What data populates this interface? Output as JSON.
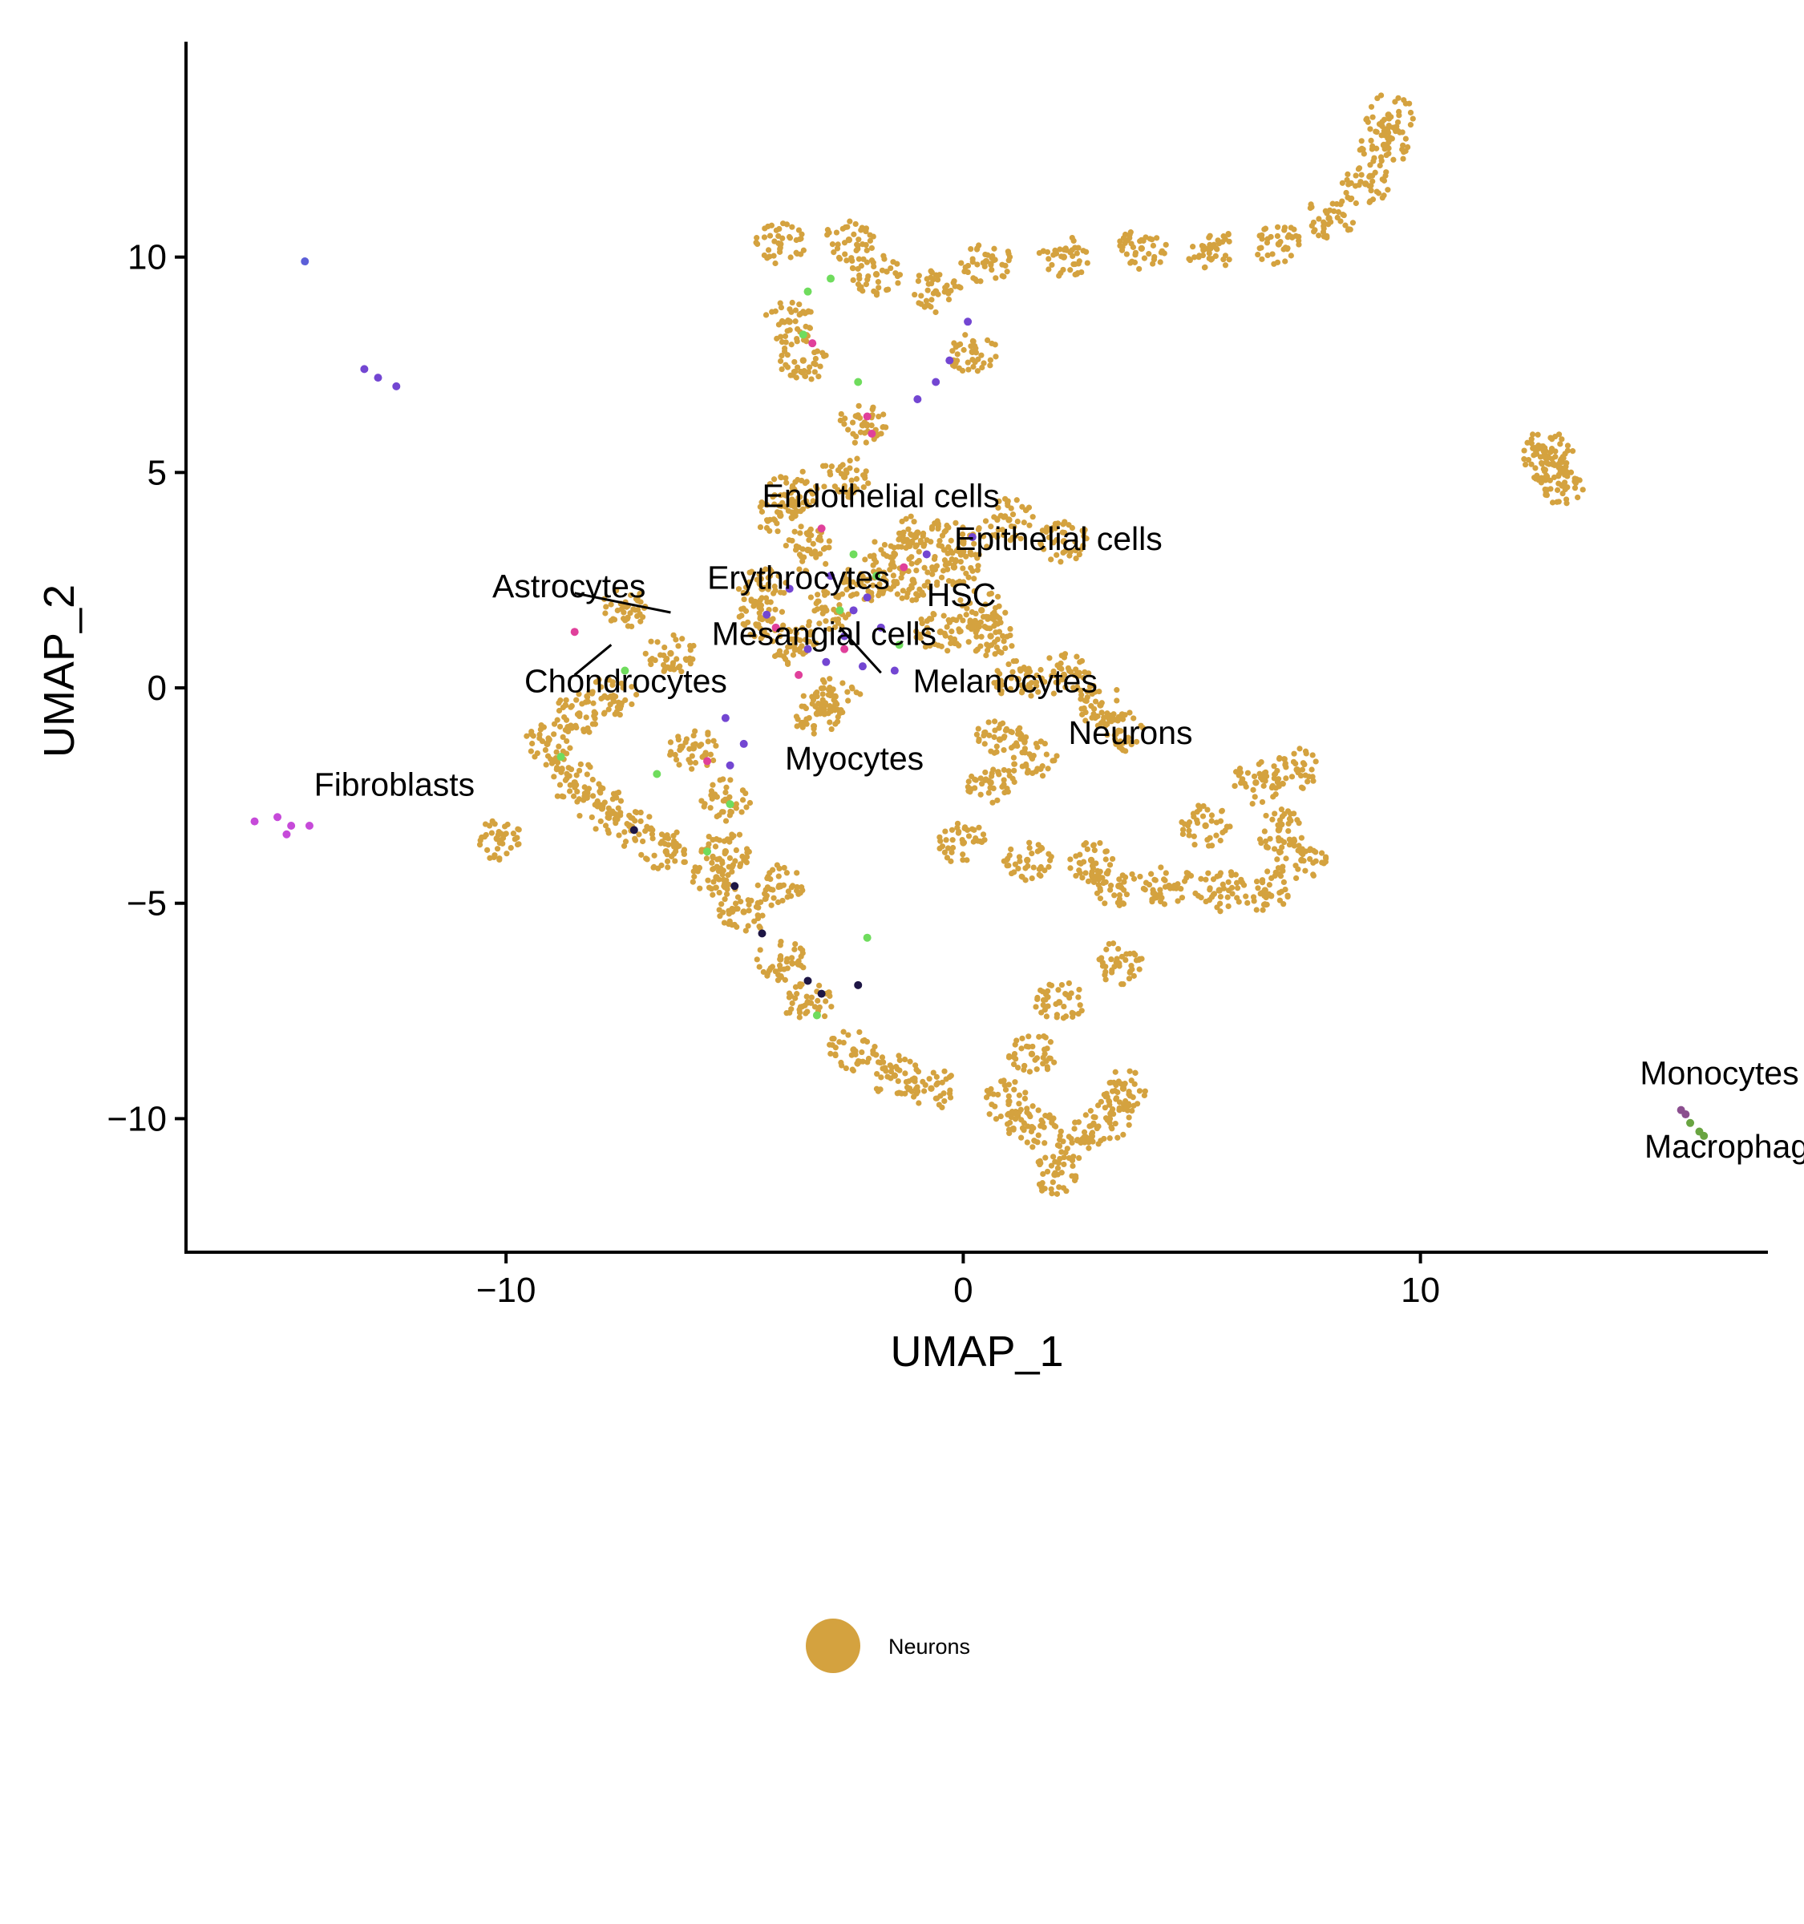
{
  "chart_data": {
    "type": "scatter",
    "title": "",
    "xlabel": "UMAP_1",
    "ylabel": "UMAP_2",
    "xlim": [
      -17,
      17.6
    ],
    "ylim": [
      -13.1,
      15
    ],
    "x_ticks": [
      {
        "value": -10,
        "label": "−10"
      },
      {
        "value": 0,
        "label": "0"
      },
      {
        "value": 10,
        "label": "10"
      }
    ],
    "y_ticks": [
      {
        "value": 10,
        "label": "10"
      },
      {
        "value": 5,
        "label": "5"
      },
      {
        "value": 0,
        "label": "0"
      },
      {
        "value": -5,
        "label": "−5"
      },
      {
        "value": -10,
        "label": "−10"
      }
    ],
    "grid": false,
    "colors": {
      "Neurons": "#d4a23f",
      "Epithelial cells": "#6fdc5d",
      "HSC": "#7346d2",
      "Endothelial cells": "#e0409b",
      "Fibroblasts": "#c64ad9",
      "Monocytes": "#8b4f8f",
      "Macrophages": "#69a441",
      "Myocytes": "#1e1645",
      "Melanocytes": "#5c5fd8"
    },
    "clusters": [
      {
        "name": "Neurons",
        "color": "#d4a23f",
        "points": [
          [
            1.5,
            -10.2
          ],
          [
            2.5,
            -10.5
          ],
          [
            3.2,
            -10
          ],
          [
            2,
            -11.3
          ],
          [
            1,
            -9.6
          ],
          [
            3.5,
            -9.3
          ],
          [
            -0.7,
            -9.3
          ],
          [
            -1.5,
            -9
          ],
          [
            -2.4,
            -8.4
          ],
          [
            -3.4,
            -7.3
          ],
          [
            -4,
            -6.3
          ],
          [
            -4.8,
            -5.2
          ],
          [
            -5.4,
            -4.4
          ],
          [
            -6.5,
            -3.8
          ],
          [
            -7.3,
            -3.2
          ],
          [
            -8.5,
            -2.2
          ],
          [
            -9.1,
            -1.3
          ],
          [
            -8.4,
            -0.6
          ],
          [
            -7.7,
            -0.2
          ],
          [
            -5.9,
            -1.4
          ],
          [
            -5.2,
            -2.6
          ],
          [
            -5.2,
            -3.8
          ],
          [
            -4,
            -4.6
          ],
          [
            -4.4,
            1.6
          ],
          [
            -3.7,
            1
          ],
          [
            -3,
            1.8
          ],
          [
            -2.1,
            2.5
          ],
          [
            -1.5,
            3.1
          ],
          [
            -1,
            3.6
          ],
          [
            0,
            3.4
          ],
          [
            1,
            3.9
          ],
          [
            2.2,
            3.4
          ],
          [
            -3.4,
            3.2
          ],
          [
            -4,
            4
          ],
          [
            -3.7,
            4.6
          ],
          [
            -2.6,
            4.9
          ],
          [
            -0.5,
            1.3
          ],
          [
            0.6,
            1.2
          ],
          [
            1.2,
            0.2
          ],
          [
            2.2,
            0.3
          ],
          [
            3,
            -0.4
          ],
          [
            3.4,
            -1
          ],
          [
            1.5,
            -1.6
          ],
          [
            0.6,
            -2.2
          ],
          [
            0,
            -3.6
          ],
          [
            1.4,
            -4
          ],
          [
            2.8,
            -4
          ],
          [
            3.4,
            -4.6
          ],
          [
            4.5,
            -4.6
          ],
          [
            5.6,
            -4.7
          ],
          [
            6.6,
            -4.7
          ],
          [
            7.4,
            -4
          ],
          [
            6.9,
            -3.3
          ],
          [
            6.4,
            -2.2
          ],
          [
            7.3,
            -1.9
          ],
          [
            5.3,
            -3.2
          ],
          [
            3.4,
            -6.4
          ],
          [
            2.1,
            -7.3
          ],
          [
            1.5,
            -8.5
          ],
          [
            -4.4,
            2.3
          ],
          [
            -4,
            10.3
          ],
          [
            -2.5,
            10.4
          ],
          [
            -3.8,
            8.5
          ],
          [
            -3.5,
            7.6
          ],
          [
            -2.2,
            6.1
          ],
          [
            -1.9,
            9.6
          ],
          [
            -0.6,
            9.2
          ],
          [
            0.2,
            7.8
          ],
          [
            0.5,
            9.9
          ],
          [
            2.2,
            10
          ],
          [
            3.9,
            10.2
          ],
          [
            5.4,
            10.2
          ],
          [
            6.9,
            10.3
          ],
          [
            8,
            10.9
          ],
          [
            8.8,
            11.7
          ],
          [
            9.2,
            12.6
          ],
          [
            9.3,
            13.3
          ],
          [
            12.7,
            5.5
          ],
          [
            12.9,
            5.2
          ],
          [
            13.1,
            4.7
          ],
          [
            -1.1,
            2.5
          ],
          [
            -0.2,
            2.8
          ],
          [
            -3.2,
            -0.6
          ],
          [
            -6.4,
            0.8
          ],
          [
            -7.4,
            1.9
          ],
          [
            -7.9,
            -2.8
          ],
          [
            -10.2,
            -3.5
          ],
          [
            0.4,
            1.8
          ],
          [
            -2.8,
            -0.2
          ],
          [
            0.8,
            -1.2
          ]
        ]
      },
      {
        "name": "Epithelial cells",
        "color": "#6fdc5d",
        "points": [
          [
            -3.4,
            9.2
          ],
          [
            -2.9,
            9.5
          ],
          [
            -3.5,
            8.2
          ],
          [
            -2.3,
            7.1
          ],
          [
            -1.9,
            2.6
          ],
          [
            -2.4,
            3.1
          ],
          [
            -2.7,
            1.8
          ],
          [
            -5.1,
            -2.7
          ],
          [
            -5.6,
            -3.8
          ],
          [
            -7.4,
            0.4
          ],
          [
            -6.7,
            -2
          ],
          [
            -3.2,
            -7.6
          ],
          [
            -1.4,
            1
          ],
          [
            -8.8,
            -1.6
          ],
          [
            -2.1,
            -5.8
          ]
        ]
      },
      {
        "name": "HSC",
        "color": "#7346d2",
        "points": [
          [
            -3.4,
            0.9
          ],
          [
            -3,
            0.6
          ],
          [
            -2.6,
            1.2
          ],
          [
            -2.2,
            0.5
          ],
          [
            -1.8,
            1.4
          ],
          [
            -4.3,
            1.7
          ],
          [
            -3.8,
            2.3
          ],
          [
            -2.1,
            2.1
          ],
          [
            -0.8,
            3.1
          ],
          [
            0.2,
            3.5
          ],
          [
            0.1,
            8.5
          ],
          [
            -0.3,
            7.6
          ],
          [
            -0.6,
            7.1
          ],
          [
            -1,
            6.7
          ],
          [
            -5.2,
            -0.7
          ],
          [
            -4.8,
            -1.3
          ],
          [
            -5.1,
            -1.8
          ],
          [
            -2.4,
            1.8
          ],
          [
            -2.9,
            2.6
          ],
          [
            -1.5,
            0.4
          ],
          [
            -13.1,
            7.4
          ],
          [
            -12.8,
            7.2
          ],
          [
            -12.4,
            7
          ]
        ]
      },
      {
        "name": "Endothelial cells",
        "color": "#e0409b",
        "points": [
          [
            -2.1,
            6.3
          ],
          [
            -2,
            5.9
          ],
          [
            -3.3,
            8
          ],
          [
            -4.1,
            1.4
          ],
          [
            -2.6,
            0.9
          ],
          [
            -1.3,
            2.8
          ],
          [
            -3.6,
            0.3
          ],
          [
            -5.6,
            -1.7
          ],
          [
            -8.5,
            1.3
          ],
          [
            -3.1,
            3.7
          ]
        ]
      },
      {
        "name": "Fibroblasts",
        "color": "#c64ad9",
        "points": [
          [
            -15.5,
            -3.1
          ],
          [
            -15,
            -3
          ],
          [
            -14.7,
            -3.2
          ],
          [
            -14.3,
            -3.2
          ],
          [
            -14.8,
            -3.4
          ]
        ]
      },
      {
        "name": "Monocytes",
        "color": "#8b4f8f",
        "points": [
          [
            15.7,
            -9.8
          ],
          [
            15.8,
            -9.9
          ]
        ]
      },
      {
        "name": "Macrophages",
        "color": "#69a441",
        "points": [
          [
            15.9,
            -10.1
          ],
          [
            16.1,
            -10.3
          ],
          [
            16.2,
            -10.4
          ]
        ]
      },
      {
        "name": "Myocytes",
        "color": "#1e1645",
        "points": [
          [
            -5,
            -4.6
          ],
          [
            -4.4,
            -5.7
          ],
          [
            -3.4,
            -6.8
          ],
          [
            -3.1,
            -7.1
          ],
          [
            -2.3,
            -6.9
          ],
          [
            -7.2,
            -3.3
          ]
        ]
      },
      {
        "name": "Melanocytes",
        "color": "#5c5fd8",
        "points": [
          [
            -14.4,
            9.9
          ]
        ]
      }
    ],
    "cluster_labels": [
      {
        "text": "Endothelial cells",
        "x": -4.4,
        "y": 4.2
      },
      {
        "text": "Epithelial cells",
        "x": -0.2,
        "y": 3.2
      },
      {
        "text": "Astrocytes",
        "x": -10.3,
        "y": 2.1
      },
      {
        "text": "Erythrocytes",
        "x": -5.6,
        "y": 2.3
      },
      {
        "text": "HSC",
        "x": -0.8,
        "y": 1.9
      },
      {
        "text": "Mesangial cells",
        "x": -5.5,
        "y": 1
      },
      {
        "text": "Chondrocytes",
        "x": -9.6,
        "y": -0.1
      },
      {
        "text": "Melanocytes",
        "x": -1.1,
        "y": -0.1
      },
      {
        "text": "Neurons",
        "x": 2.3,
        "y": -1.3
      },
      {
        "text": "Myocytes",
        "x": -3.9,
        "y": -1.9
      },
      {
        "text": "Fibroblasts",
        "x": -14.2,
        "y": -2.5
      },
      {
        "text": "Monocytes",
        "x": 14.8,
        "y": -9.2
      },
      {
        "text": "Macrophages",
        "x": 14.9,
        "y": -10.9
      }
    ],
    "label_leaders": [
      {
        "from": [
          -8.5,
          2.2
        ],
        "to": [
          -6.4,
          1.75
        ]
      },
      {
        "from": [
          -8.5,
          0.3
        ],
        "to": [
          -7.7,
          1.0
        ]
      },
      {
        "from": [
          -2.7,
          1.4
        ],
        "to": [
          -1.8,
          0.35
        ]
      }
    ],
    "legend": {
      "position": "bottom",
      "entries": [
        {
          "name": "Neurons",
          "color": "#d4a23f"
        }
      ]
    }
  }
}
